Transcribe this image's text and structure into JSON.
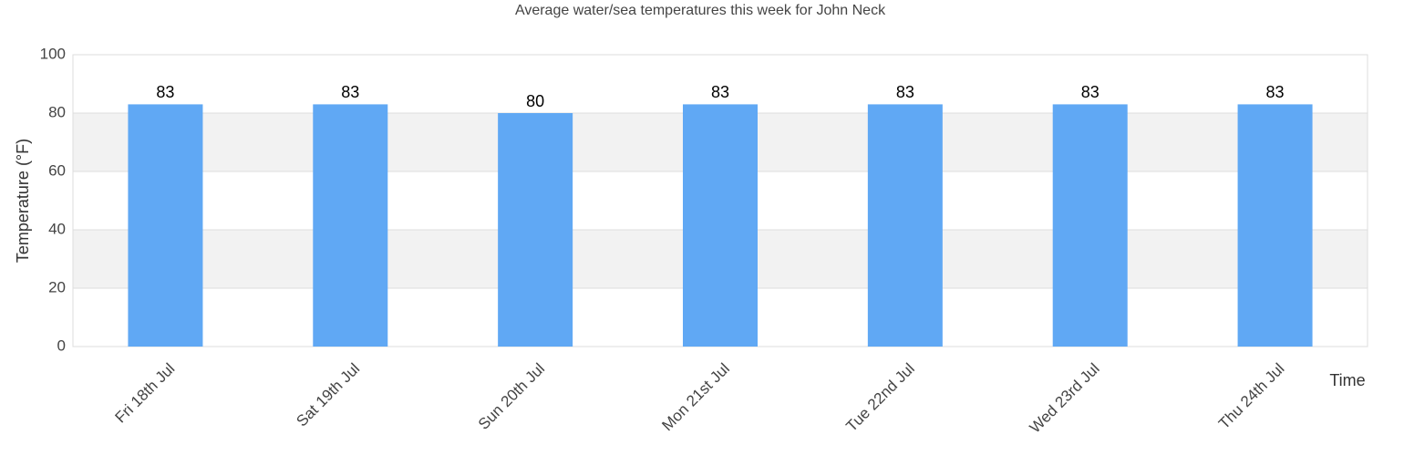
{
  "chart_data": {
    "type": "bar",
    "title": "Average water/sea temperatures this week for John Neck",
    "x_label": "Time",
    "y_label": "Temperature (°F)",
    "categories": [
      "Fri 18th Jul",
      "Sat 19th Jul",
      "Sun 20th Jul",
      "Mon 21st Jul",
      "Tue 22nd Jul",
      "Wed 23rd Jul",
      "Thu 24th Jul"
    ],
    "values": [
      83,
      83,
      80,
      83,
      83,
      83,
      83
    ],
    "color": "#60a8f4",
    "ylim": [
      0,
      100
    ],
    "yticks": [
      0,
      20,
      40,
      60,
      80,
      100
    ],
    "grid": true
  }
}
